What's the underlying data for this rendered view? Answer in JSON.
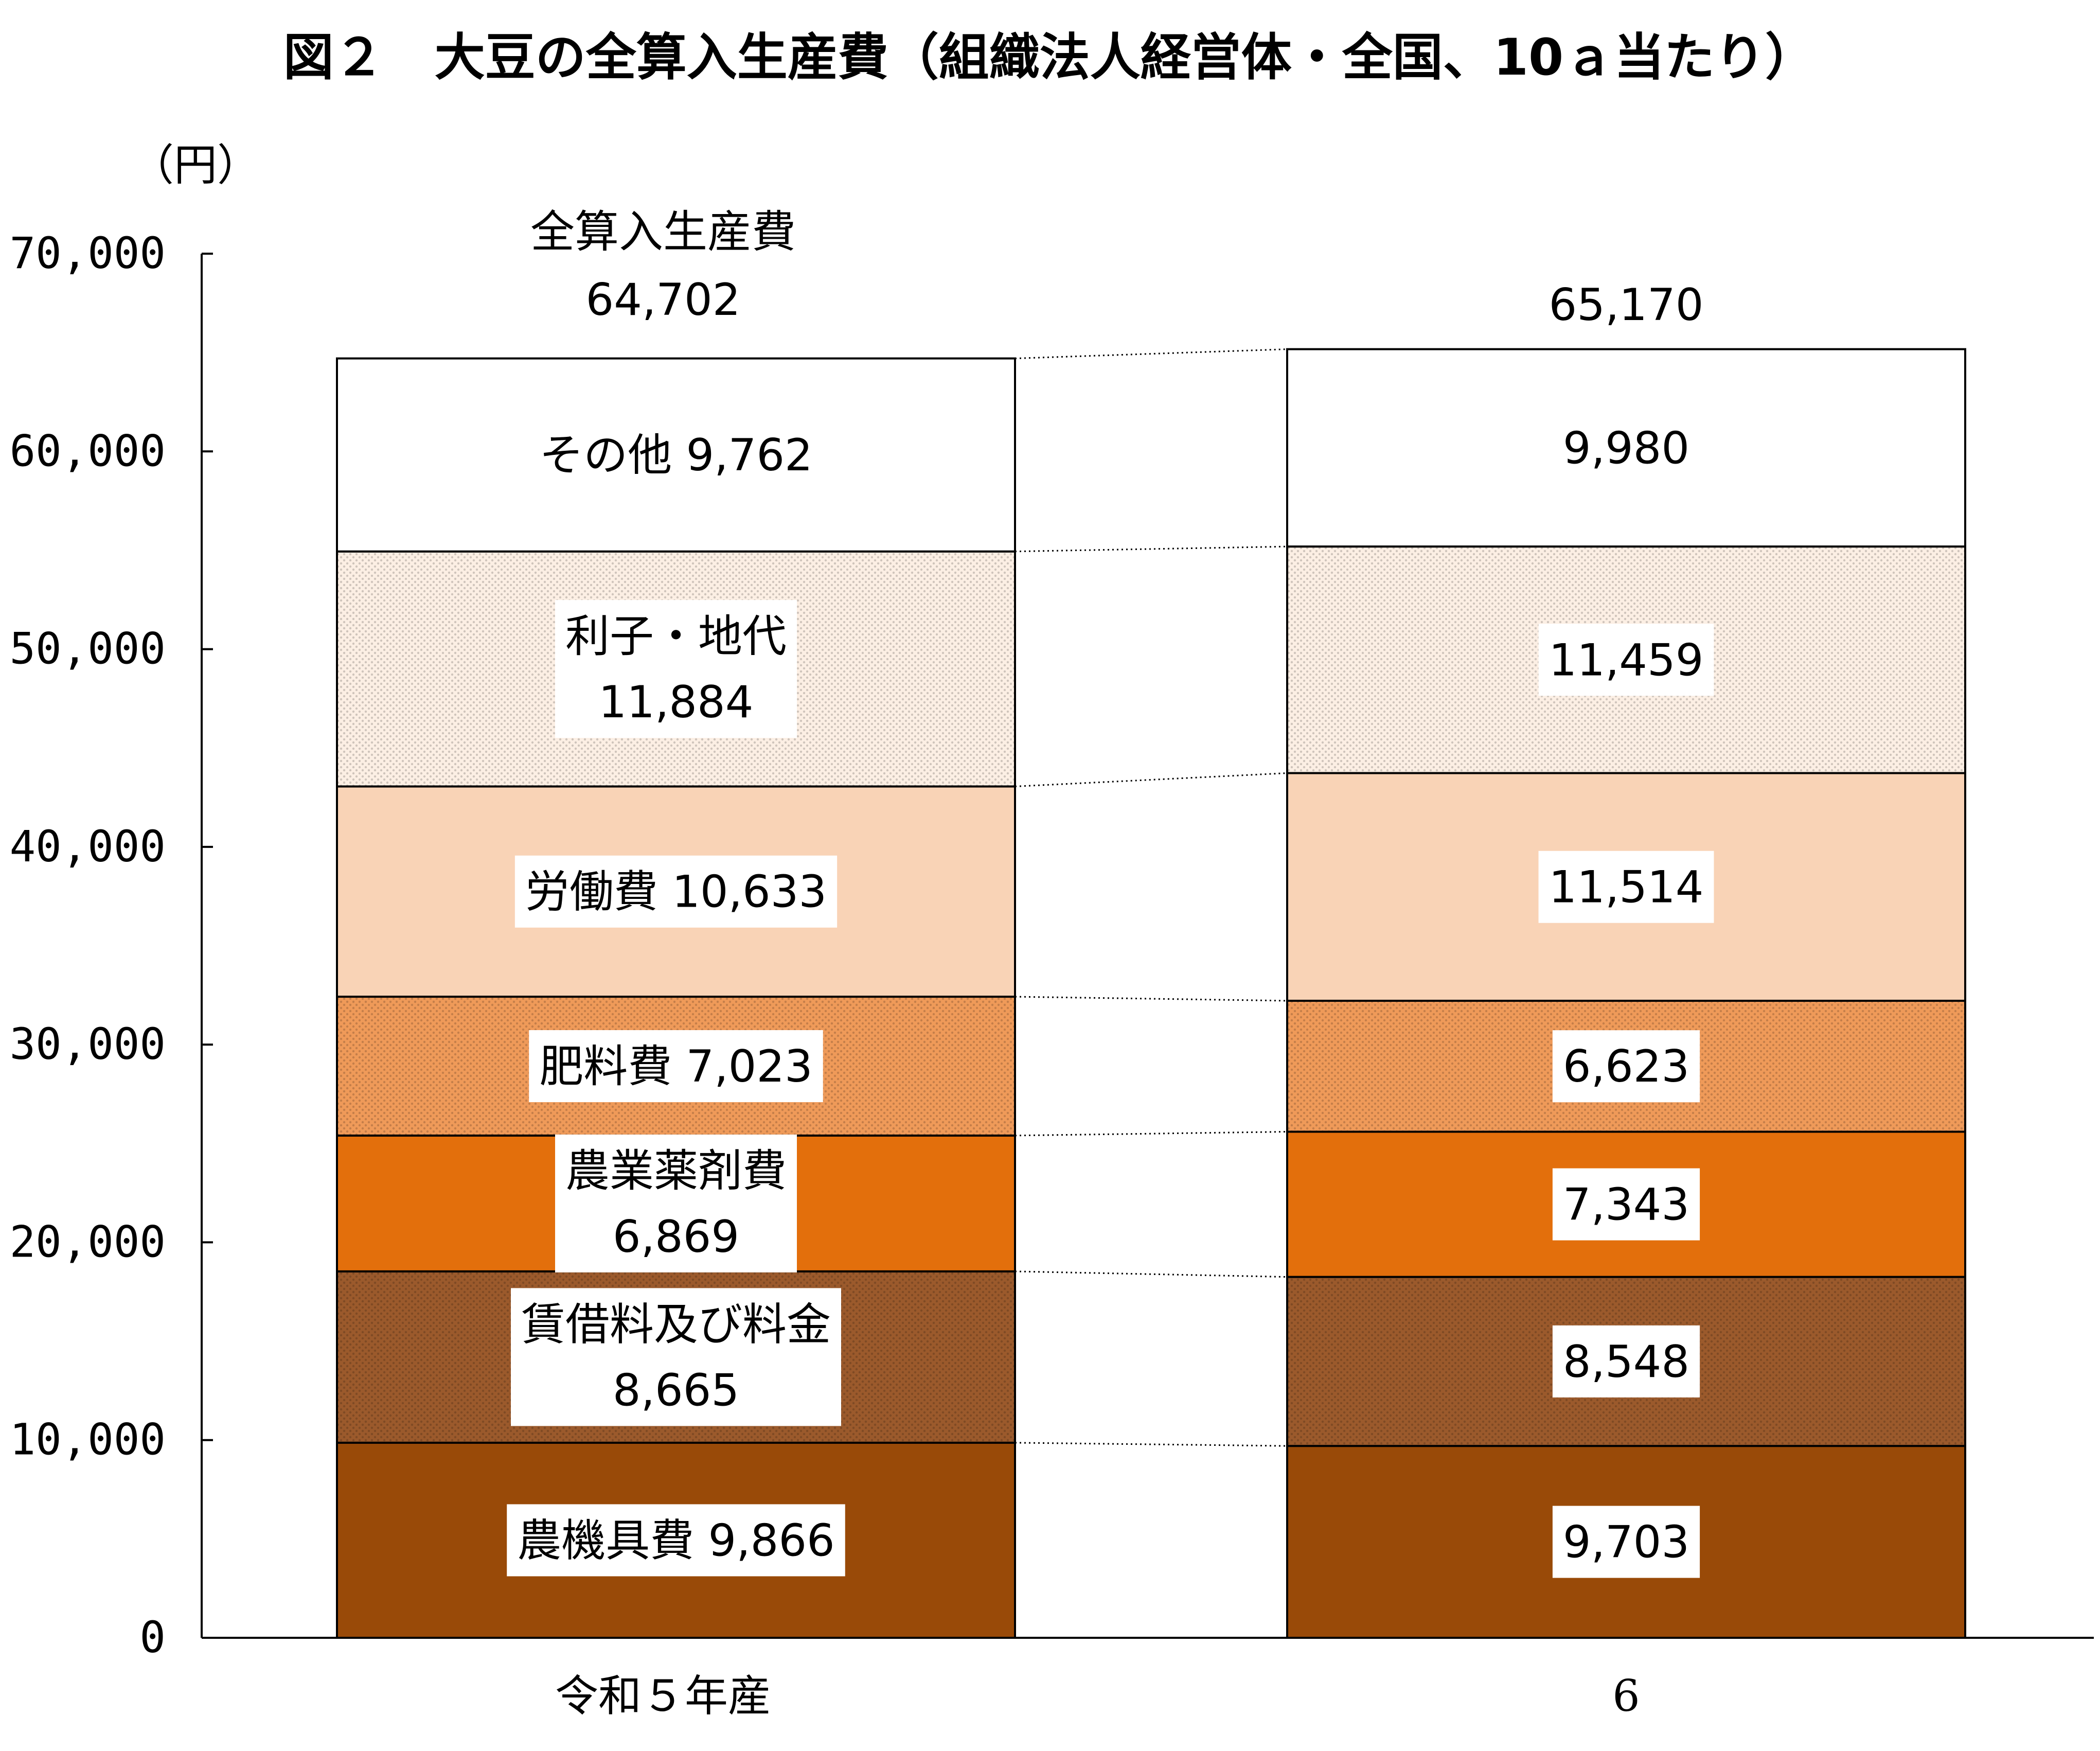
{
  "chart_data": {
    "type": "bar",
    "stacked": true,
    "title": "図２　大豆の全算入生産費（組織法人経営体・全国、10ａ当たり）",
    "ylabel": "（円）",
    "ylim": [
      0,
      70000
    ],
    "yticks": [
      "0",
      "10,000",
      "20,000",
      "30,000",
      "40,000",
      "50,000",
      "60,000",
      "70,000"
    ],
    "categories": [
      "令和５年産",
      "6"
    ],
    "total_label": "全算入生産費",
    "totals": [
      64702,
      65170
    ],
    "total_display": [
      "64,702",
      "65,170"
    ],
    "series": [
      {
        "name": "農機具費",
        "values": [
          9866,
          9703
        ],
        "display": [
          "9,866",
          "9,703"
        ],
        "color": "#994a08",
        "pattern": "none"
      },
      {
        "name": "賃借料及び料金",
        "values": [
          8665,
          8548
        ],
        "display": [
          "8,665",
          "8,548"
        ],
        "color": "#9b5a2c",
        "pattern": "dots"
      },
      {
        "name": "農業薬剤費",
        "values": [
          6869,
          7343
        ],
        "display": [
          "6,869",
          "7,343"
        ],
        "color": "#e36f0c",
        "pattern": "none"
      },
      {
        "name": "肥料費",
        "values": [
          7023,
          6623
        ],
        "display": [
          "7,023",
          "6,623"
        ],
        "color": "#ef9a59",
        "pattern": "dots"
      },
      {
        "name": "労働費",
        "values": [
          10633,
          11514
        ],
        "display": [
          "10,633",
          "11,514"
        ],
        "color": "#f9d3b6",
        "pattern": "none"
      },
      {
        "name": "利子・地代",
        "values": [
          11884,
          11459
        ],
        "display": [
          "11,884",
          "11,459"
        ],
        "color": "#fcefe4",
        "pattern": "dots"
      },
      {
        "name": "その他",
        "values": [
          9762,
          9980
        ],
        "display": [
          "9,762",
          "9,980"
        ],
        "color": "#ffffff",
        "pattern": "none"
      }
    ],
    "first_bar_label_style": [
      "inline",
      "stacked",
      "stacked",
      "inline",
      "inline",
      "stacked",
      "inline"
    ],
    "connector_lines": "dotted",
    "grid": false,
    "legend": "none"
  }
}
